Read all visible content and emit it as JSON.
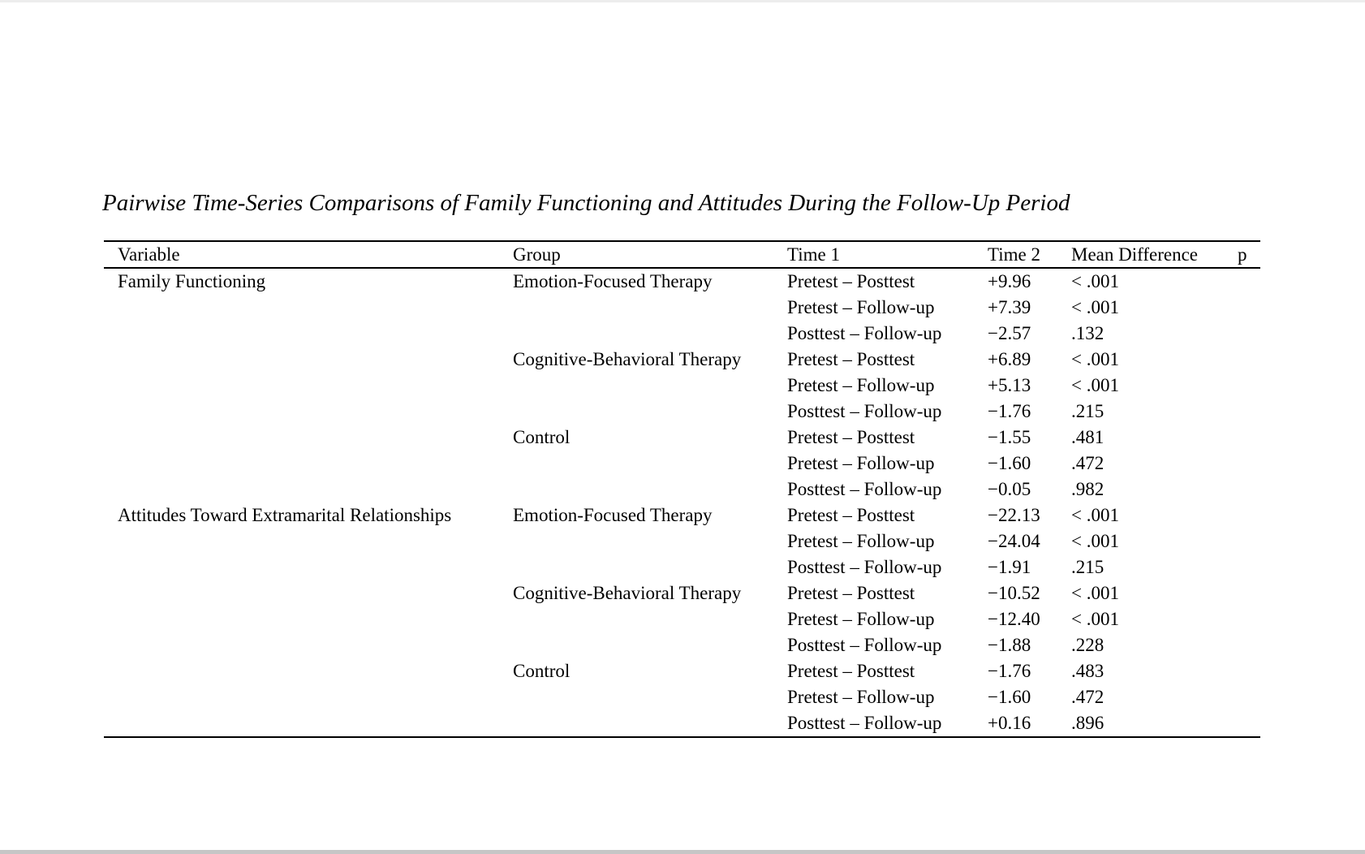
{
  "page": {
    "background_color": "#ffffff",
    "top_edge_color": "#ededed",
    "bottom_edge_color": "#c6c6c6",
    "rule_color": "#000000",
    "text_color": "#000000"
  },
  "document": {
    "table_title": "Pairwise Time-Series Comparisons of Family Functioning and Attitudes During the Follow-Up Period"
  },
  "table": {
    "headers": [
      "Variable",
      "Group",
      "Time 1",
      "Time 2",
      "Mean Difference",
      "p"
    ],
    "column_keys": [
      "variable",
      "group",
      "comparison",
      "mean_difference",
      "p",
      "empty"
    ],
    "rows": [
      {
        "variable": "Family Functioning",
        "group": "Emotion-Focused Therapy",
        "comparison": "Pretest – Posttest",
        "mean_difference": "+9.96",
        "p": "< .001"
      },
      {
        "variable": "",
        "group": "",
        "comparison": "Pretest – Follow-up",
        "mean_difference": "+7.39",
        "p": "< .001"
      },
      {
        "variable": "",
        "group": "",
        "comparison": "Posttest – Follow-up",
        "mean_difference": "−2.57",
        "p": ".132"
      },
      {
        "variable": "",
        "group": "Cognitive-Behavioral Therapy",
        "comparison": "Pretest – Posttest",
        "mean_difference": "+6.89",
        "p": "< .001"
      },
      {
        "variable": "",
        "group": "",
        "comparison": "Pretest – Follow-up",
        "mean_difference": "+5.13",
        "p": "< .001"
      },
      {
        "variable": "",
        "group": "",
        "comparison": "Posttest – Follow-up",
        "mean_difference": "−1.76",
        "p": ".215"
      },
      {
        "variable": "",
        "group": "Control",
        "comparison": "Pretest – Posttest",
        "mean_difference": "−1.55",
        "p": ".481"
      },
      {
        "variable": "",
        "group": "",
        "comparison": "Pretest – Follow-up",
        "mean_difference": "−1.60",
        "p": ".472"
      },
      {
        "variable": "",
        "group": "",
        "comparison": "Posttest – Follow-up",
        "mean_difference": "−0.05",
        "p": ".982"
      },
      {
        "variable": "Attitudes Toward Extramarital Relationships",
        "group": "Emotion-Focused Therapy",
        "comparison": "Pretest – Posttest",
        "mean_difference": "−22.13",
        "p": "< .001"
      },
      {
        "variable": "",
        "group": "",
        "comparison": "Pretest – Follow-up",
        "mean_difference": "−24.04",
        "p": "< .001"
      },
      {
        "variable": "",
        "group": "",
        "comparison": "Posttest – Follow-up",
        "mean_difference": "−1.91",
        "p": ".215"
      },
      {
        "variable": "",
        "group": "Cognitive-Behavioral Therapy",
        "comparison": "Pretest – Posttest",
        "mean_difference": "−10.52",
        "p": "< .001"
      },
      {
        "variable": "",
        "group": "",
        "comparison": "Pretest – Follow-up",
        "mean_difference": "−12.40",
        "p": "< .001"
      },
      {
        "variable": "",
        "group": "",
        "comparison": "Posttest – Follow-up",
        "mean_difference": "−1.88",
        "p": ".228"
      },
      {
        "variable": "",
        "group": "Control",
        "comparison": "Pretest – Posttest",
        "mean_difference": "−1.76",
        "p": ".483"
      },
      {
        "variable": "",
        "group": "",
        "comparison": "Pretest – Follow-up",
        "mean_difference": "−1.60",
        "p": ".472"
      },
      {
        "variable": "",
        "group": "",
        "comparison": "Posttest – Follow-up",
        "mean_difference": "+0.16",
        "p": ".896"
      }
    ]
  }
}
